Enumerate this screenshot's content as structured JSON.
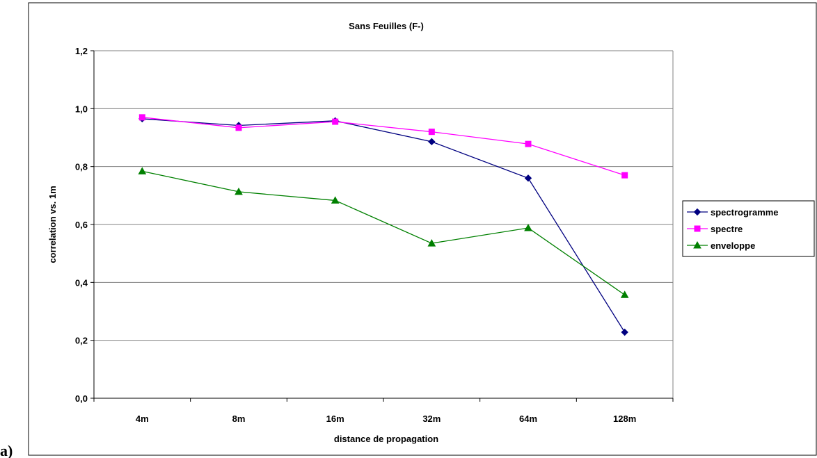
{
  "panel_label": "a)",
  "chart_data": {
    "type": "line",
    "title": "Sans Feuilles (F-)",
    "xlabel": "distance de propagation",
    "ylabel": "correlation vs. 1m",
    "categories": [
      "4m",
      "8m",
      "16m",
      "32m",
      "64m",
      "128m"
    ],
    "ylim": [
      0,
      1.2
    ],
    "yticks": [
      "0,0",
      "0,2",
      "0,4",
      "0,6",
      "0,8",
      "1,0",
      "1,2"
    ],
    "grid": true,
    "legend_position": "right",
    "series": [
      {
        "name": "spectrogramme",
        "values": [
          0.965,
          0.942,
          0.958,
          0.886,
          0.76,
          0.228
        ],
        "color": "#000080",
        "marker": "diamond"
      },
      {
        "name": "spectre",
        "values": [
          0.97,
          0.934,
          0.955,
          0.92,
          0.878,
          0.77
        ],
        "color": "#FF00FF",
        "marker": "square"
      },
      {
        "name": "enveloppe",
        "values": [
          0.784,
          0.713,
          0.683,
          0.535,
          0.588,
          0.357
        ],
        "color": "#008000",
        "marker": "triangle"
      }
    ]
  }
}
